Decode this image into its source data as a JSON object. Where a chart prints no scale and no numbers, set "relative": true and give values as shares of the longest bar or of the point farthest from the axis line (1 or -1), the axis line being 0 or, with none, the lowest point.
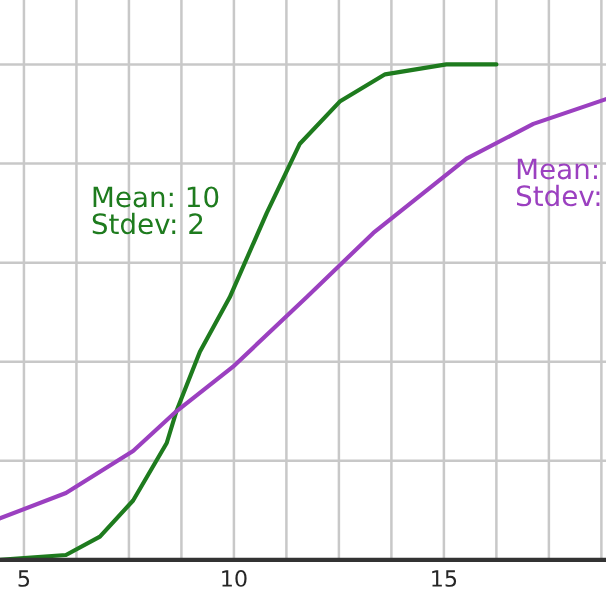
{
  "chart_data": {
    "type": "line",
    "relative": true,
    "xlim": [
      4.43,
      18.86
    ],
    "xticks": [
      5,
      {
        "value": 6.25,
        "label": null
      },
      {
        "value": 7.5,
        "label": null
      },
      {
        "value": 8.75,
        "label": null
      },
      10,
      {
        "value": 11.25,
        "label": null
      },
      {
        "value": 12.5,
        "label": null
      },
      {
        "value": 13.75,
        "label": null
      },
      15,
      {
        "value": 16.25,
        "label": null
      },
      {
        "value": 17.5,
        "label": null
      },
      {
        "value": 18.75,
        "label": null
      }
    ],
    "grid": true,
    "legend": false,
    "marker": "none",
    "line_style": "solid",
    "tick_labels": "x",
    "series": [
      {
        "name": "Mean: 10\nStdev: 2",
        "color": "#1e7b1e",
        "x": [
          4.43,
          5,
          6.0,
          6.81,
          7.6,
          8.4,
          8.63,
          9.19,
          9.9,
          10.78,
          11.57,
          12.52,
          13.6,
          15.06,
          16.25
        ],
        "values": [
          0.0,
          0.004,
          0.01,
          0.047,
          0.12,
          0.236,
          0.3,
          0.42,
          0.53,
          0.7,
          0.84,
          0.925,
          0.98,
          1.0,
          1.0
        ]
      },
      {
        "name": "Mean:\nStdev:",
        "color": "#9b40c0",
        "x": [
          4.43,
          6.0,
          7.6,
          8.63,
          9.98,
          11.73,
          13.32,
          15.54,
          17.13,
          18.86
        ],
        "values": [
          0.084,
          0.135,
          0.22,
          0.3,
          0.39,
          0.53,
          0.66,
          0.81,
          0.88,
          0.93
        ]
      }
    ]
  }
}
